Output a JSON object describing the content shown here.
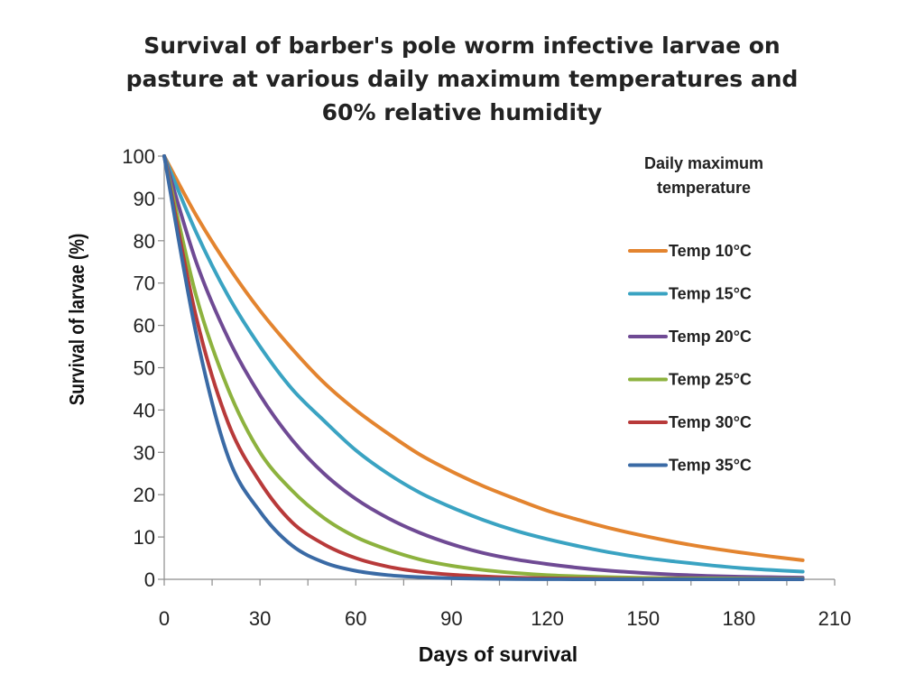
{
  "title_lines": [
    "Survival of barber's pole worm infective larvae on",
    "pasture at various daily maximum temperatures and",
    "60% relative humidity"
  ],
  "chart_data": {
    "type": "line",
    "xlabel": "Days of survival",
    "ylabel": "Survival of larvae (%)",
    "xlim": [
      0,
      210
    ],
    "ylim": [
      0,
      100
    ],
    "xticks": [
      0,
      30,
      60,
      90,
      120,
      150,
      180,
      210
    ],
    "yticks": [
      0,
      10,
      20,
      30,
      40,
      50,
      60,
      70,
      80,
      90,
      100
    ],
    "x_minor_tick_step": 15,
    "grid": false,
    "legend_title": [
      "Daily maximum",
      "temperature"
    ],
    "legend_position": "right",
    "x": [
      0,
      10,
      20,
      30,
      40,
      50,
      60,
      70,
      80,
      90,
      100,
      110,
      120,
      130,
      140,
      150,
      160,
      170,
      180,
      190,
      200
    ],
    "series": [
      {
        "name": "Temp 10°C",
        "color": "#e3842f",
        "values": [
          100,
          86,
          74,
          63.5,
          54.5,
          46.5,
          40,
          34.5,
          29.5,
          25.5,
          22,
          19,
          16.2,
          14,
          12,
          10.3,
          8.8,
          7.5,
          6.4,
          5.4,
          4.5
        ]
      },
      {
        "name": "Temp 15°C",
        "color": "#3aa3c2",
        "values": [
          100,
          82,
          67,
          55,
          45,
          37.5,
          30.5,
          25,
          20.5,
          17,
          14,
          11.5,
          9.5,
          7.8,
          6.3,
          5.1,
          4.2,
          3.4,
          2.7,
          2.2,
          1.8
        ]
      },
      {
        "name": "Temp 20°C",
        "color": "#6f4a94",
        "values": [
          100,
          75,
          57,
          43.5,
          33,
          25,
          19,
          14.5,
          11,
          8.3,
          6.2,
          4.7,
          3.6,
          2.7,
          2,
          1.5,
          1.1,
          0.8,
          0.6,
          0.5,
          0.4
        ]
      },
      {
        "name": "Temp 25°C",
        "color": "#8db23e",
        "values": [
          100,
          67,
          45,
          30,
          21,
          14.5,
          10,
          7,
          4.7,
          3.2,
          2.2,
          1.5,
          1,
          0.7,
          0.5,
          0.35,
          0.25,
          0.2,
          0.15,
          0.1,
          0.1
        ]
      },
      {
        "name": "Temp 30°C",
        "color": "#b83a3a",
        "values": [
          100,
          62,
          37,
          23,
          13.5,
          8.3,
          5,
          3,
          1.8,
          1.1,
          0.7,
          0.4,
          0.25,
          0.15,
          0.1,
          0.05,
          0.05,
          0,
          0,
          0,
          0
        ]
      },
      {
        "name": "Temp 35°C",
        "color": "#3a6aa5",
        "values": [
          100,
          58,
          29,
          16,
          8,
          4,
          2,
          1,
          0.5,
          0.25,
          0.12,
          0.06,
          0.03,
          0,
          0,
          0,
          0,
          0,
          0,
          0,
          0
        ]
      }
    ]
  }
}
